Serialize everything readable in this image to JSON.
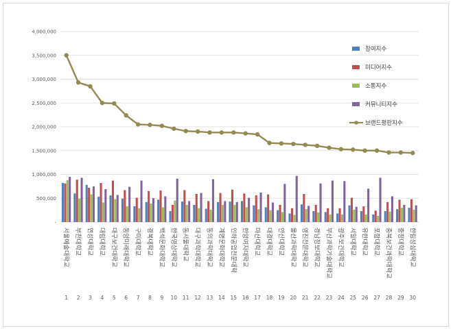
{
  "chart_data": {
    "type": "bar",
    "title": "",
    "xlabel": "",
    "ylabel": "",
    "ylim": [
      0,
      4000000
    ],
    "yticks": [
      {
        "value": 0,
        "label": "-"
      },
      {
        "value": 500000,
        "label": "500,000"
      },
      {
        "value": 1000000,
        "label": "1,000,000"
      },
      {
        "value": 1500000,
        "label": "1,500,000"
      },
      {
        "value": 2000000,
        "label": "2,000,000"
      },
      {
        "value": 2500000,
        "label": "2,500,000"
      },
      {
        "value": 3000000,
        "label": "3,000,000"
      },
      {
        "value": 3500000,
        "label": "3,500,000"
      },
      {
        "value": 4000000,
        "label": "4,000,000"
      }
    ],
    "grid": true,
    "legend_position": "right",
    "categories": [
      "서울예술대학교",
      "부천대학교",
      "연성대학교",
      "대림대학교",
      "대구보건대학교",
      "동양미래대학교",
      "구미대학교",
      "경복대학교",
      "백석문화대학교",
      "한국영상대학교",
      "동서울대학교",
      "대구과학대학교",
      "동의과학대학교",
      "계명문화대학교",
      "인하공업전문대학",
      "한양여자대학교",
      "마산대학교",
      "대경대학교",
      "안산대학교",
      "울산과학대학교",
      "영진전문대학교",
      "경남정보대학교",
      "부산과학기술대학교",
      "광주보건대학교",
      "서일대학교",
      "유한대학교",
      "포항대학교",
      "충북보건과학대학교",
      "충청대학교",
      "한림성심대학교"
    ],
    "ranks": [
      "1",
      "2",
      "3",
      "4",
      "5",
      "6",
      "7",
      "8",
      "9",
      "10",
      "11",
      "12",
      "13",
      "14",
      "15",
      "16",
      "17",
      "18",
      "19",
      "20",
      "21",
      "22",
      "23",
      "24",
      "25",
      "26",
      "27",
      "28",
      "29",
      "30"
    ],
    "series": [
      {
        "name": "참여지수",
        "color": "#4f81bd",
        "kind": "bar",
        "values": [
          820000,
          600000,
          780000,
          530000,
          560000,
          490000,
          330000,
          420000,
          470000,
          230000,
          430000,
          360000,
          280000,
          420000,
          430000,
          440000,
          350000,
          310000,
          250000,
          180000,
          370000,
          230000,
          210000,
          180000,
          350000,
          230000,
          160000,
          230000,
          270000,
          300000
        ]
      },
      {
        "name": "미디어지수",
        "color": "#c0504d",
        "kind": "bar",
        "values": [
          810000,
          890000,
          720000,
          820000,
          870000,
          670000,
          510000,
          650000,
          660000,
          360000,
          670000,
          590000,
          440000,
          610000,
          680000,
          600000,
          560000,
          580000,
          360000,
          290000,
          590000,
          360000,
          290000,
          290000,
          510000,
          330000,
          240000,
          420000,
          470000,
          480000
        ]
      },
      {
        "name": "소통지수",
        "color": "#9bbb59",
        "kind": "bar",
        "values": [
          880000,
          490000,
          580000,
          410000,
          480000,
          330000,
          290000,
          390000,
          310000,
          450000,
          360000,
          290000,
          260000,
          360000,
          360000,
          310000,
          270000,
          250000,
          210000,
          150000,
          270000,
          200000,
          160000,
          160000,
          260000,
          160000,
          130000,
          220000,
          300000,
          260000
        ]
      },
      {
        "name": "커뮤니티지수",
        "color": "#8064a2",
        "kind": "bar",
        "values": [
          950000,
          930000,
          750000,
          690000,
          570000,
          740000,
          870000,
          500000,
          540000,
          910000,
          440000,
          610000,
          900000,
          440000,
          420000,
          510000,
          620000,
          410000,
          800000,
          970000,
          340000,
          810000,
          870000,
          860000,
          320000,
          700000,
          930000,
          540000,
          360000,
          350000
        ]
      },
      {
        "name": "브랜드평판지수",
        "color": "#938953",
        "kind": "line",
        "values": [
          3500000,
          2930000,
          2850000,
          2500000,
          2490000,
          2240000,
          2050000,
          2040000,
          2020000,
          1960000,
          1910000,
          1900000,
          1880000,
          1880000,
          1880000,
          1860000,
          1840000,
          1660000,
          1650000,
          1640000,
          1620000,
          1600000,
          1560000,
          1530000,
          1520000,
          1500000,
          1500000,
          1460000,
          1460000,
          1450000
        ]
      }
    ]
  }
}
